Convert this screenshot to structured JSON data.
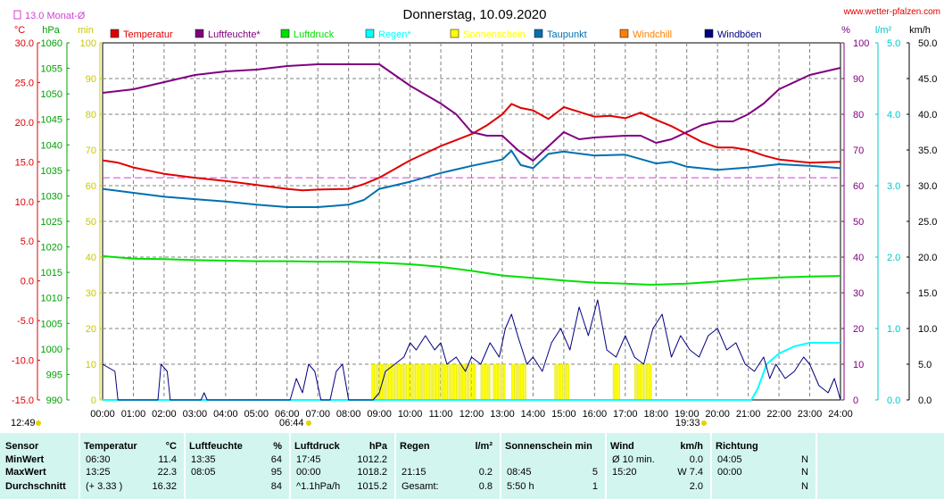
{
  "title": "Donnerstag, 10.09.2020",
  "source": "www.wetter-pfalzen.com",
  "monthly_avg_label": "13.0 Monat-Ø",
  "axis_units": {
    "temp": "°C",
    "pressure": "hPa",
    "min": "min",
    "percent": "%",
    "rain": "l/m²",
    "wind": "km/h"
  },
  "colors": {
    "temp": "#e00000",
    "humidity": "#800080",
    "pressure": "#00e000",
    "rain": "#00ffff",
    "sun": "#ffff00",
    "dewpoint": "#0070b0",
    "windchill": "#ff8000",
    "gust": "#000080",
    "avg": "#d040d0",
    "grid": "#808080"
  },
  "legend": [
    {
      "name": "Temperatur",
      "color": "#e00000"
    },
    {
      "name": "Luftfeuchte*",
      "color": "#800080"
    },
    {
      "name": "Luftdruck",
      "color": "#00e000"
    },
    {
      "name": "Regen*",
      "color": "#00ffff"
    },
    {
      "name": "Sonnenschein",
      "color": "#ffff00"
    },
    {
      "name": "Taupunkt",
      "color": "#0070b0"
    },
    {
      "name": "Windchill",
      "color": "#ff8000"
    },
    {
      "name": "Windböen",
      "color": "#000080"
    }
  ],
  "sun_times": {
    "sunrise": "06:44",
    "sunset": "19:33",
    "daylength": "12:49"
  },
  "chart_data": {
    "type": "line",
    "x_range": [
      0,
      24
    ],
    "x_ticks": [
      "00:00",
      "01:00",
      "02:00",
      "03:00",
      "04:00",
      "05:00",
      "06:00",
      "07:00",
      "08:00",
      "09:00",
      "10:00",
      "11:00",
      "12:00",
      "13:00",
      "14:00",
      "15:00",
      "16:00",
      "17:00",
      "18:00",
      "19:00",
      "20:00",
      "21:00",
      "22:00",
      "23:00",
      "24:00"
    ],
    "axes": {
      "temp": {
        "range": [
          -15,
          30
        ],
        "ticks": [
          "30.0",
          "25.0",
          "20.0",
          "15.0",
          "10.0",
          "5.0",
          "0.0",
          "-5.0",
          "-10.0",
          "-15.0"
        ]
      },
      "pressure": {
        "range": [
          990,
          1060
        ],
        "ticks": [
          "1060",
          "1055",
          "1050",
          "1045",
          "1040",
          "1035",
          "1030",
          "1025",
          "1020",
          "1015",
          "1010",
          "1005",
          "1000",
          "995",
          "990"
        ]
      },
      "sun_min": {
        "range": [
          0,
          100
        ],
        "ticks": [
          "100",
          "90",
          "80",
          "70",
          "60",
          "50",
          "40",
          "30",
          "20",
          "10",
          "0"
        ]
      },
      "humidity": {
        "range": [
          0,
          100
        ],
        "ticks": [
          "100",
          "90",
          "80",
          "70",
          "60",
          "50",
          "40",
          "30",
          "20",
          "10",
          "0"
        ]
      },
      "rain": {
        "range": [
          0,
          5
        ],
        "ticks": [
          "5.0",
          "4.0",
          "3.0",
          "2.0",
          "1.0",
          "0.0"
        ]
      },
      "wind": {
        "range": [
          0,
          50
        ],
        "ticks": [
          "50.0",
          "45.0",
          "40.0",
          "35.0",
          "30.0",
          "25.0",
          "20.0",
          "15.0",
          "10.0",
          "5.0",
          "0.0"
        ]
      }
    },
    "monthly_avg_temp": 13.0,
    "series": [
      {
        "name": "Temperatur",
        "axis": "temp",
        "points": [
          [
            0,
            15.2
          ],
          [
            0.5,
            14.9
          ],
          [
            1,
            14.3
          ],
          [
            2,
            13.5
          ],
          [
            3,
            13.0
          ],
          [
            4,
            12.6
          ],
          [
            5,
            12.1
          ],
          [
            6,
            11.6
          ],
          [
            6.5,
            11.4
          ],
          [
            7,
            11.5
          ],
          [
            8,
            11.6
          ],
          [
            8.5,
            12.2
          ],
          [
            9,
            13.0
          ],
          [
            10,
            15.2
          ],
          [
            11,
            17.0
          ],
          [
            12,
            18.5
          ],
          [
            12.5,
            19.6
          ],
          [
            13,
            21.0
          ],
          [
            13.3,
            22.3
          ],
          [
            13.6,
            21.8
          ],
          [
            14,
            21.5
          ],
          [
            14.5,
            20.4
          ],
          [
            15,
            21.9
          ],
          [
            15.5,
            21.3
          ],
          [
            16,
            20.7
          ],
          [
            16.5,
            20.8
          ],
          [
            17,
            20.5
          ],
          [
            17.5,
            21.2
          ],
          [
            18,
            20.3
          ],
          [
            18.5,
            19.5
          ],
          [
            19,
            18.5
          ],
          [
            19.5,
            17.5
          ],
          [
            20,
            16.8
          ],
          [
            20.5,
            16.8
          ],
          [
            21,
            16.5
          ],
          [
            21.5,
            15.8
          ],
          [
            22,
            15.3
          ],
          [
            23,
            14.9
          ],
          [
            24,
            15.0
          ]
        ]
      },
      {
        "name": "Taupunkt",
        "axis": "temp",
        "points": [
          [
            0,
            11.6
          ],
          [
            1,
            11.1
          ],
          [
            2,
            10.6
          ],
          [
            3,
            10.3
          ],
          [
            4,
            10.0
          ],
          [
            5,
            9.6
          ],
          [
            6,
            9.3
          ],
          [
            7,
            9.3
          ],
          [
            8,
            9.6
          ],
          [
            8.5,
            10.2
          ],
          [
            9,
            11.6
          ],
          [
            10,
            12.5
          ],
          [
            11,
            13.6
          ],
          [
            12,
            14.5
          ],
          [
            13,
            15.3
          ],
          [
            13.3,
            16.4
          ],
          [
            13.6,
            14.6
          ],
          [
            14,
            14.2
          ],
          [
            14.5,
            16.0
          ],
          [
            15,
            16.3
          ],
          [
            16,
            15.8
          ],
          [
            17,
            15.9
          ],
          [
            18,
            14.8
          ],
          [
            18.5,
            15.0
          ],
          [
            19,
            14.4
          ],
          [
            20,
            14.0
          ],
          [
            21,
            14.3
          ],
          [
            22,
            14.7
          ],
          [
            23,
            14.5
          ],
          [
            24,
            14.2
          ]
        ]
      },
      {
        "name": "Luftfeuchte*",
        "axis": "humidity",
        "points": [
          [
            0,
            86
          ],
          [
            1,
            87
          ],
          [
            2,
            89
          ],
          [
            3,
            91
          ],
          [
            4,
            92
          ],
          [
            5,
            92.5
          ],
          [
            6,
            93.5
          ],
          [
            7,
            94
          ],
          [
            8,
            94
          ],
          [
            9,
            94
          ],
          [
            10,
            88
          ],
          [
            11,
            83
          ],
          [
            11.5,
            80
          ],
          [
            12,
            75
          ],
          [
            12.5,
            74
          ],
          [
            13,
            74
          ],
          [
            13.5,
            70
          ],
          [
            14,
            67
          ],
          [
            14.5,
            71
          ],
          [
            15,
            75
          ],
          [
            15.5,
            73
          ],
          [
            16,
            73.5
          ],
          [
            17,
            74
          ],
          [
            17.5,
            74
          ],
          [
            18,
            72
          ],
          [
            18.5,
            73
          ],
          [
            19,
            75
          ],
          [
            19.5,
            77
          ],
          [
            20,
            78
          ],
          [
            20.5,
            78
          ],
          [
            21,
            80
          ],
          [
            21.5,
            83
          ],
          [
            22,
            87
          ],
          [
            23,
            91
          ],
          [
            24,
            93
          ]
        ]
      },
      {
        "name": "Luftdruck",
        "axis": "pressure",
        "points": [
          [
            0,
            1018.2
          ],
          [
            1,
            1017.7
          ],
          [
            2,
            1017.6
          ],
          [
            3,
            1017.4
          ],
          [
            4,
            1017.3
          ],
          [
            5,
            1017.2
          ],
          [
            6,
            1017.2
          ],
          [
            7,
            1017.1
          ],
          [
            8,
            1017.1
          ],
          [
            9,
            1016.9
          ],
          [
            10,
            1016.6
          ],
          [
            11,
            1016.1
          ],
          [
            12,
            1015.3
          ],
          [
            13,
            1014.4
          ],
          [
            14,
            1013.9
          ],
          [
            15,
            1013.4
          ],
          [
            16,
            1013.0
          ],
          [
            17,
            1012.8
          ],
          [
            17.75,
            1012.6
          ],
          [
            18,
            1012.6
          ],
          [
            19,
            1012.8
          ],
          [
            20,
            1013.2
          ],
          [
            21,
            1013.7
          ],
          [
            22,
            1014.0
          ],
          [
            23,
            1014.2
          ],
          [
            24,
            1014.3
          ]
        ]
      },
      {
        "name": "Regen*",
        "axis": "rain",
        "points": [
          [
            0,
            0
          ],
          [
            21.1,
            0
          ],
          [
            21.3,
            0.15
          ],
          [
            21.6,
            0.5
          ],
          [
            22,
            0.65
          ],
          [
            22.5,
            0.75
          ],
          [
            23,
            0.8
          ],
          [
            23.5,
            0.8
          ],
          [
            24,
            0.8
          ]
        ]
      },
      {
        "name": "Windböen",
        "axis": "wind",
        "points": [
          [
            0,
            5
          ],
          [
            0.4,
            4
          ],
          [
            0.5,
            0
          ],
          [
            1.8,
            0
          ],
          [
            1.9,
            5
          ],
          [
            2.1,
            4
          ],
          [
            2.2,
            0
          ],
          [
            3.2,
            0
          ],
          [
            3.3,
            1
          ],
          [
            3.4,
            0
          ],
          [
            6.1,
            0
          ],
          [
            6.3,
            3
          ],
          [
            6.5,
            1
          ],
          [
            6.7,
            5
          ],
          [
            6.9,
            4
          ],
          [
            7.1,
            0
          ],
          [
            7.4,
            0
          ],
          [
            7.6,
            4
          ],
          [
            7.8,
            5
          ],
          [
            8.0,
            0
          ],
          [
            8.8,
            0
          ],
          [
            9.0,
            1
          ],
          [
            9.2,
            4
          ],
          [
            9.5,
            5
          ],
          [
            9.8,
            6
          ],
          [
            10.0,
            8
          ],
          [
            10.2,
            7
          ],
          [
            10.5,
            9
          ],
          [
            10.8,
            7
          ],
          [
            11.0,
            8
          ],
          [
            11.2,
            5
          ],
          [
            11.5,
            6
          ],
          [
            11.8,
            4
          ],
          [
            12.0,
            6
          ],
          [
            12.3,
            5
          ],
          [
            12.6,
            8
          ],
          [
            12.9,
            6
          ],
          [
            13.1,
            10
          ],
          [
            13.3,
            12
          ],
          [
            13.5,
            9
          ],
          [
            13.8,
            5
          ],
          [
            14.0,
            6
          ],
          [
            14.3,
            4
          ],
          [
            14.6,
            8
          ],
          [
            14.9,
            10
          ],
          [
            15.2,
            7
          ],
          [
            15.5,
            13
          ],
          [
            15.8,
            9
          ],
          [
            16.1,
            14
          ],
          [
            16.4,
            7
          ],
          [
            16.7,
            6
          ],
          [
            17.0,
            9
          ],
          [
            17.3,
            6
          ],
          [
            17.6,
            5
          ],
          [
            17.9,
            10
          ],
          [
            18.2,
            12
          ],
          [
            18.5,
            6
          ],
          [
            18.8,
            9
          ],
          [
            19.1,
            7
          ],
          [
            19.4,
            6
          ],
          [
            19.7,
            9
          ],
          [
            20.0,
            10
          ],
          [
            20.3,
            7
          ],
          [
            20.6,
            8
          ],
          [
            20.9,
            5
          ],
          [
            21.2,
            4
          ],
          [
            21.5,
            6
          ],
          [
            21.7,
            3
          ],
          [
            21.9,
            5
          ],
          [
            22.2,
            3
          ],
          [
            22.5,
            4
          ],
          [
            22.8,
            6
          ],
          [
            23.0,
            5
          ],
          [
            23.3,
            2
          ],
          [
            23.6,
            1
          ],
          [
            23.8,
            3
          ],
          [
            24,
            0
          ]
        ]
      }
    ],
    "sunshine_minutes": {
      "axis": "sun_min",
      "intervals": [
        [
          8.75,
          9.25
        ],
        [
          9.25,
          12.1
        ],
        [
          12.3,
          12.6
        ],
        [
          12.7,
          13.1
        ],
        [
          13.3,
          13.8
        ],
        [
          14.7,
          15.2
        ],
        [
          16.6,
          16.8
        ],
        [
          17.3,
          17.8
        ]
      ],
      "value": 5
    }
  },
  "stats": {
    "columns": [
      {
        "title": "Sensor",
        "rows": [
          "MinWert",
          "MaxWert",
          "Durchschnitt"
        ]
      },
      {
        "title": "Temperatur",
        "unit": "°C",
        "rows": [
          [
            "06:30",
            "11.4"
          ],
          [
            "13:25",
            "22.3"
          ],
          [
            "(+ 3.33 )",
            "16.32"
          ]
        ]
      },
      {
        "title": "Luftfeuchte",
        "unit": "%",
        "rows": [
          [
            "13:35",
            "64"
          ],
          [
            "08:05",
            "95"
          ],
          [
            "",
            "84"
          ]
        ]
      },
      {
        "title": "Luftdruck",
        "unit": "hPa",
        "rows": [
          [
            "17:45",
            "1012.2"
          ],
          [
            "00:00",
            "1018.2"
          ],
          [
            "^1.1hPa/h",
            "1015.2"
          ]
        ]
      },
      {
        "title": "Regen",
        "unit": "l/m²",
        "rows": [
          [
            "",
            ""
          ],
          [
            "21:15",
            "0.2"
          ],
          [
            "Gesamt:",
            "0.8"
          ]
        ]
      },
      {
        "title": "Sonnenschein min",
        "unit": "",
        "rows": [
          [
            "",
            ""
          ],
          [
            "08:45",
            "5"
          ],
          [
            "5:50 h",
            "1"
          ]
        ]
      },
      {
        "title": "Wind",
        "unit": "km/h",
        "rows": [
          [
            "Ø 10 min.",
            "0.0"
          ],
          [
            "15:20",
            "W 7.4"
          ],
          [
            "",
            "2.0"
          ]
        ]
      },
      {
        "title": "Richtung",
        "unit": "",
        "rows": [
          [
            "04:05",
            "N"
          ],
          [
            "00:00",
            "N"
          ],
          [
            "",
            "N"
          ]
        ]
      }
    ]
  }
}
